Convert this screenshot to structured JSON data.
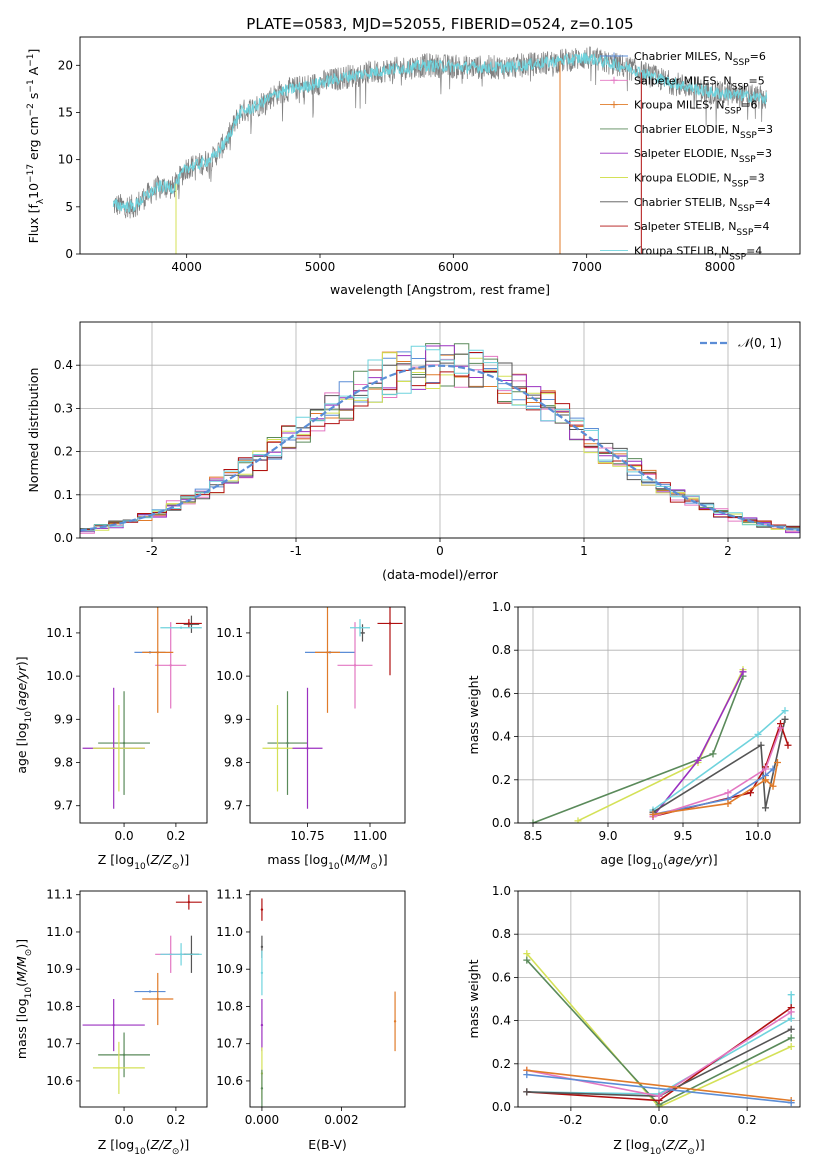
{
  "palette": {
    "Chabrier MILES": "#5b8dd6",
    "Salpeter MILES": "#e377c2",
    "Kroupa MILES": "#e07b2a",
    "Chabrier ELODIE": "#5a8a5a",
    "Salpeter ELODIE": "#9b30c0",
    "Kroupa ELODIE": "#d4e157",
    "Chabrier STELIB": "#555555",
    "Salpeter STELIB": "#b01010",
    "Kroupa STELIB": "#6fd3dd",
    "normal": "#5b8dd6",
    "data": "#808080"
  },
  "chart_data": [
    {
      "type": "line",
      "title": "PLATE=0583, MJD=52055, FIBERID=0524, z=0.105",
      "xlabel": "wavelength [Angstrom, rest frame]",
      "ylabel": "Flux [fλ10⁻¹⁷ erg cm⁻² s⁻¹ A⁻¹]",
      "xlim": [
        3200,
        8600
      ],
      "ylim": [
        0,
        23
      ],
      "xticks": [
        4000,
        5000,
        6000,
        7000,
        8000
      ],
      "yticks": [
        0,
        5,
        10,
        15,
        20
      ],
      "x_range_data": [
        3450,
        8350
      ],
      "continuum": {
        "x": [
          3450,
          3600,
          3700,
          3800,
          3900,
          4000,
          4100,
          4200,
          4300,
          4400,
          4500,
          4700,
          4900,
          5200,
          5500,
          5800,
          6100,
          6400,
          6700,
          7000,
          7300,
          7600,
          7900,
          8350
        ],
        "y": [
          5.2,
          5.0,
          6.2,
          7.2,
          7.0,
          9.2,
          9.5,
          10.2,
          12.0,
          15.0,
          15.5,
          17.2,
          17.8,
          18.8,
          19.5,
          20.0,
          19.8,
          19.8,
          20.3,
          20.8,
          19.8,
          18.3,
          17.2,
          16.5
        ]
      },
      "legend": [
        "Chabrier MILES, N_SSP=6",
        "Salpeter MILES, N_SSP=5",
        "Kroupa MILES, N_SSP=6",
        "Chabrier ELODIE, N_SSP=3",
        "Salpeter ELODIE, N_SSP=3",
        "Kroupa ELODIE, N_SSP=3",
        "Chabrier STELIB, N_SSP=4",
        "Salpeter STELIB, N_SSP=4",
        "Kroupa STELIB, N_SSP=4"
      ],
      "legend_placement": "upper-right"
    },
    {
      "type": "histogram",
      "xlabel": "(data-model)/error",
      "ylabel": "Normed distribution",
      "xlim": [
        -2.5,
        2.5
      ],
      "ylim": [
        0,
        0.5
      ],
      "xticks": [
        -2,
        -1,
        0,
        1,
        2
      ],
      "yticks": [
        0.0,
        0.1,
        0.2,
        0.3,
        0.4
      ],
      "bin_width": 0.1,
      "legend": [
        "N(0,1)"
      ],
      "grid": true
    },
    {
      "type": "errorbar",
      "xlabel": "Z [log10(Z/Z⊙)]",
      "ylabel": "age  [log10(age/yr)]",
      "xlim": [
        -0.17,
        0.32
      ],
      "ylim": [
        9.66,
        10.16
      ],
      "xticks": [
        0.0,
        0.2
      ],
      "yticks": [
        9.7,
        9.8,
        9.9,
        10.0,
        10.1
      ],
      "points": [
        {
          "model": "Chabrier MILES",
          "x": 0.1,
          "y": 10.055,
          "xerr": 0.06,
          "yerr": 0.0
        },
        {
          "model": "Salpeter MILES",
          "x": 0.18,
          "y": 10.025,
          "xerr": 0.06,
          "yerr": 0.1
        },
        {
          "model": "Kroupa MILES",
          "x": 0.13,
          "y": 10.055,
          "xerr": 0.06,
          "yerr": 0.14
        },
        {
          "model": "Chabrier ELODIE",
          "x": 0.0,
          "y": 9.845,
          "xerr": 0.1,
          "yerr": 0.12
        },
        {
          "model": "Salpeter ELODIE",
          "x": -0.04,
          "y": 9.833,
          "xerr": 0.12,
          "yerr": 0.14
        },
        {
          "model": "Kroupa ELODIE",
          "x": -0.02,
          "y": 9.833,
          "xerr": 0.1,
          "yerr": 0.1
        },
        {
          "model": "Chabrier STELIB",
          "x": 0.26,
          "y": 10.12,
          "xerr": 0.03,
          "yerr": 0.02
        },
        {
          "model": "Salpeter STELIB",
          "x": 0.25,
          "y": 10.122,
          "xerr": 0.05,
          "yerr": 0.01
        },
        {
          "model": "Kroupa STELIB",
          "x": 0.22,
          "y": 10.112,
          "xerr": 0.08,
          "yerr": 0.0
        }
      ]
    },
    {
      "type": "errorbar",
      "xlabel": "mass [log10(M/M⊙)]",
      "ylabel": "",
      "xlim": [
        10.52,
        11.14
      ],
      "ylim": [
        9.66,
        10.16
      ],
      "xticks": [
        10.75,
        11.0
      ],
      "yticks": [
        9.7,
        9.8,
        9.9,
        10.0,
        10.1
      ],
      "points": [
        {
          "model": "Chabrier MILES",
          "x": 10.84,
          "y": 10.055,
          "xerr": 0.1,
          "yerr": 0.0
        },
        {
          "model": "Salpeter MILES",
          "x": 10.94,
          "y": 10.025,
          "xerr": 0.07,
          "yerr": 0.1
        },
        {
          "model": "Kroupa MILES",
          "x": 10.83,
          "y": 10.055,
          "xerr": 0.05,
          "yerr": 0.14
        },
        {
          "model": "Chabrier ELODIE",
          "x": 10.67,
          "y": 9.845,
          "xerr": 0.08,
          "yerr": 0.12
        },
        {
          "model": "Salpeter ELODIE",
          "x": 10.75,
          "y": 9.833,
          "xerr": 0.06,
          "yerr": 0.14
        },
        {
          "model": "Kroupa ELODIE",
          "x": 10.63,
          "y": 9.833,
          "xerr": 0.06,
          "yerr": 0.1
        },
        {
          "model": "Chabrier STELIB",
          "x": 10.97,
          "y": 10.1,
          "xerr": 0.01,
          "yerr": 0.02
        },
        {
          "model": "Salpeter STELIB",
          "x": 11.08,
          "y": 10.122,
          "xerr": 0.05,
          "yerr": 0.12
        },
        {
          "model": "Kroupa STELIB",
          "x": 10.96,
          "y": 10.112,
          "xerr": 0.04,
          "yerr": 0.02
        }
      ]
    },
    {
      "type": "line",
      "xlabel": "age  [log10(age/yr)]",
      "ylabel": "mass weight",
      "xlim": [
        8.4,
        10.28
      ],
      "ylim": [
        0,
        1
      ],
      "xticks": [
        8.5,
        9.0,
        9.5,
        10.0
      ],
      "yticks": [
        0.0,
        0.2,
        0.4,
        0.6,
        0.8,
        1.0
      ],
      "grid": true,
      "series": [
        {
          "model": "Chabrier ELODIE",
          "x": [
            8.5,
            9.7,
            9.9
          ],
          "y": [
            0.0,
            0.32,
            0.68
          ]
        },
        {
          "model": "Kroupa ELODIE",
          "x": [
            8.8,
            9.6,
            9.9
          ],
          "y": [
            0.01,
            0.28,
            0.71
          ]
        },
        {
          "model": "Salpeter ELODIE",
          "x": [
            9.3,
            9.6,
            9.9
          ],
          "y": [
            0.03,
            0.29,
            0.7
          ]
        },
        {
          "model": "Kroupa STELIB",
          "x": [
            9.3,
            10.0,
            10.18
          ],
          "y": [
            0.06,
            0.41,
            0.52
          ]
        },
        {
          "model": "Chabrier STELIB",
          "x": [
            9.3,
            10.02,
            10.05,
            10.18
          ],
          "y": [
            0.05,
            0.36,
            0.07,
            0.48
          ]
        },
        {
          "model": "Salpeter STELIB",
          "x": [
            9.3,
            9.95,
            10.05,
            10.15,
            10.2
          ],
          "y": [
            0.03,
            0.14,
            0.26,
            0.46,
            0.36
          ]
        },
        {
          "model": "Chabrier MILES",
          "x": [
            9.3,
            9.8,
            10.05,
            10.1
          ],
          "y": [
            0.04,
            0.11,
            0.22,
            0.25
          ]
        },
        {
          "model": "Salpeter MILES",
          "x": [
            9.3,
            9.8,
            10.05,
            10.15
          ],
          "y": [
            0.03,
            0.14,
            0.25,
            0.44
          ]
        },
        {
          "model": "Kroupa MILES",
          "x": [
            9.3,
            9.8,
            10.05,
            10.1,
            10.13
          ],
          "y": [
            0.04,
            0.09,
            0.2,
            0.17,
            0.28
          ]
        }
      ]
    },
    {
      "type": "errorbar",
      "xlabel": "Z [log10(Z/Z⊙)]",
      "ylabel": "mass [log10(M/M⊙)]",
      "xlim": [
        -0.17,
        0.32
      ],
      "ylim": [
        10.53,
        11.11
      ],
      "xticks": [
        0.0,
        0.2
      ],
      "yticks": [
        10.6,
        10.7,
        10.8,
        10.9,
        11.0,
        11.1
      ],
      "points": [
        {
          "model": "Chabrier MILES",
          "x": 0.1,
          "y": 10.84,
          "xerr": 0.06,
          "yerr": 0.0
        },
        {
          "model": "Salpeter MILES",
          "x": 0.18,
          "y": 10.94,
          "xerr": 0.06,
          "yerr": 0.05
        },
        {
          "model": "Kroupa MILES",
          "x": 0.13,
          "y": 10.82,
          "xerr": 0.06,
          "yerr": 0.07
        },
        {
          "model": "Chabrier ELODIE",
          "x": 0.0,
          "y": 10.67,
          "xerr": 0.1,
          "yerr": 0.06
        },
        {
          "model": "Salpeter ELODIE",
          "x": -0.04,
          "y": 10.75,
          "xerr": 0.12,
          "yerr": 0.07
        },
        {
          "model": "Kroupa ELODIE",
          "x": -0.02,
          "y": 10.635,
          "xerr": 0.1,
          "yerr": 0.07
        },
        {
          "model": "Chabrier STELIB",
          "x": 0.26,
          "y": 10.94,
          "xerr": 0.03,
          "yerr": 0.05
        },
        {
          "model": "Salpeter STELIB",
          "x": 0.25,
          "y": 11.08,
          "xerr": 0.05,
          "yerr": 0.02
        },
        {
          "model": "Kroupa STELIB",
          "x": 0.22,
          "y": 10.94,
          "xerr": 0.08,
          "yerr": 0.03
        }
      ]
    },
    {
      "type": "errorbar",
      "xlabel": "E(B-V)",
      "ylabel": "",
      "xlim": [
        -0.0003,
        0.0036
      ],
      "ylim": [
        10.53,
        11.11
      ],
      "xticks": [
        0.0,
        0.002
      ],
      "yticks": [
        10.6,
        10.7,
        10.8,
        10.9,
        11.0,
        11.1
      ],
      "points": [
        {
          "model": "Kroupa MILES",
          "x": 0.00335,
          "y": 10.76,
          "xerr": 0,
          "yerr": 0.08
        },
        {
          "model": "Salpeter STELIB",
          "x": 0.0,
          "y": 11.06,
          "xerr": 0,
          "yerr": 0.03
        },
        {
          "model": "Chabrier STELIB",
          "x": 0.0,
          "y": 10.96,
          "xerr": 0,
          "yerr": 0.03
        },
        {
          "model": "Kroupa STELIB",
          "x": 0.0,
          "y": 10.89,
          "xerr": 0,
          "yerr": 0.06
        },
        {
          "model": "Salpeter ELODIE",
          "x": 0.0,
          "y": 10.75,
          "xerr": 0,
          "yerr": 0.07
        },
        {
          "model": "Kroupa ELODIE",
          "x": 0.0,
          "y": 10.62,
          "xerr": 0,
          "yerr": 0.07
        },
        {
          "model": "Chabrier ELODIE",
          "x": 0.0,
          "y": 10.58,
          "xerr": 0,
          "yerr": 0.05
        }
      ]
    },
    {
      "type": "line",
      "xlabel": "Z [log10(Z/Z⊙)]",
      "ylabel": "mass weight",
      "xlim": [
        -0.32,
        0.32
      ],
      "ylim": [
        0,
        1
      ],
      "xticks": [
        -0.2,
        0.0,
        0.2
      ],
      "yticks": [
        0.0,
        0.2,
        0.4,
        0.6,
        0.8,
        1.0
      ],
      "grid": true,
      "series": [
        {
          "model": "Kroupa ELODIE",
          "x": [
            -0.3,
            0.0,
            0.3
          ],
          "y": [
            0.71,
            0.0,
            0.28
          ]
        },
        {
          "model": "Chabrier ELODIE",
          "x": [
            -0.3,
            0.0,
            0.3
          ],
          "y": [
            0.68,
            0.01,
            0.32
          ]
        },
        {
          "model": "Kroupa STELIB",
          "x": [
            -0.3,
            0.0,
            0.3,
            0.3
          ],
          "y": [
            0.07,
            0.06,
            0.41,
            0.52
          ]
        },
        {
          "model": "Salpeter STELIB",
          "x": [
            -0.3,
            0.0,
            0.3
          ],
          "y": [
            0.07,
            0.03,
            0.46
          ]
        },
        {
          "model": "Chabrier STELIB",
          "x": [
            -0.3,
            0.0,
            0.3
          ],
          "y": [
            0.07,
            0.05,
            0.36
          ]
        },
        {
          "model": "Salpeter MILES",
          "x": [
            -0.3,
            0.0,
            0.3
          ],
          "y": [
            0.17,
            0.05,
            0.44
          ]
        },
        {
          "model": "Kroupa MILES",
          "x": [
            -0.3,
            0.3
          ],
          "y": [
            0.17,
            0.03
          ]
        },
        {
          "model": "Chabrier MILES",
          "x": [
            -0.3,
            0.3
          ],
          "y": [
            0.15,
            0.02
          ]
        }
      ]
    }
  ]
}
